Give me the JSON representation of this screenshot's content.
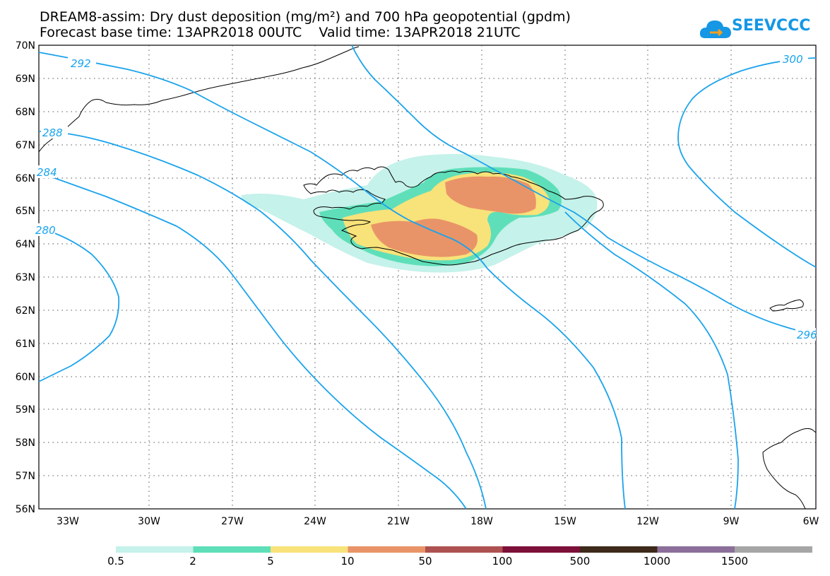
{
  "title": {
    "line1": "DREAM8-assim: Dry dust deposition (mg/m²) and 700 hPa geopotential (gpdm)",
    "line2": "Forecast base time: 13APR2018 00UTC    Valid time: 13APR2018 21UTC"
  },
  "logo": {
    "text": "SEEVCCC",
    "icon": "cloud-icon",
    "color": "#1597e5"
  },
  "map": {
    "lat_labels": [
      "70N",
      "69N",
      "68N",
      "67N",
      "66N",
      "65N",
      "64N",
      "63N",
      "62N",
      "61N",
      "60N",
      "59N",
      "58N",
      "57N",
      "56N"
    ],
    "lon_labels": [
      "33W",
      "30W",
      "27W",
      "24W",
      "21W",
      "18W",
      "15W",
      "12W",
      "9W",
      "6W"
    ],
    "contour_labels": [
      "292",
      "288",
      "284",
      "280",
      "300",
      "296"
    ],
    "contour_color": "#1aa3ec",
    "coast_color": "#000000"
  },
  "legend": {
    "labels": [
      "0.5",
      "2",
      "5",
      "10",
      "50",
      "100",
      "500",
      "1000",
      "1500"
    ],
    "colors": [
      "#c5f2ea",
      "#5fdfb9",
      "#f8e27a",
      "#e99468",
      "#ae5151",
      "#7c1039",
      "#3d2a1a",
      "#8b6f9a",
      "#a6a6a6"
    ]
  }
}
